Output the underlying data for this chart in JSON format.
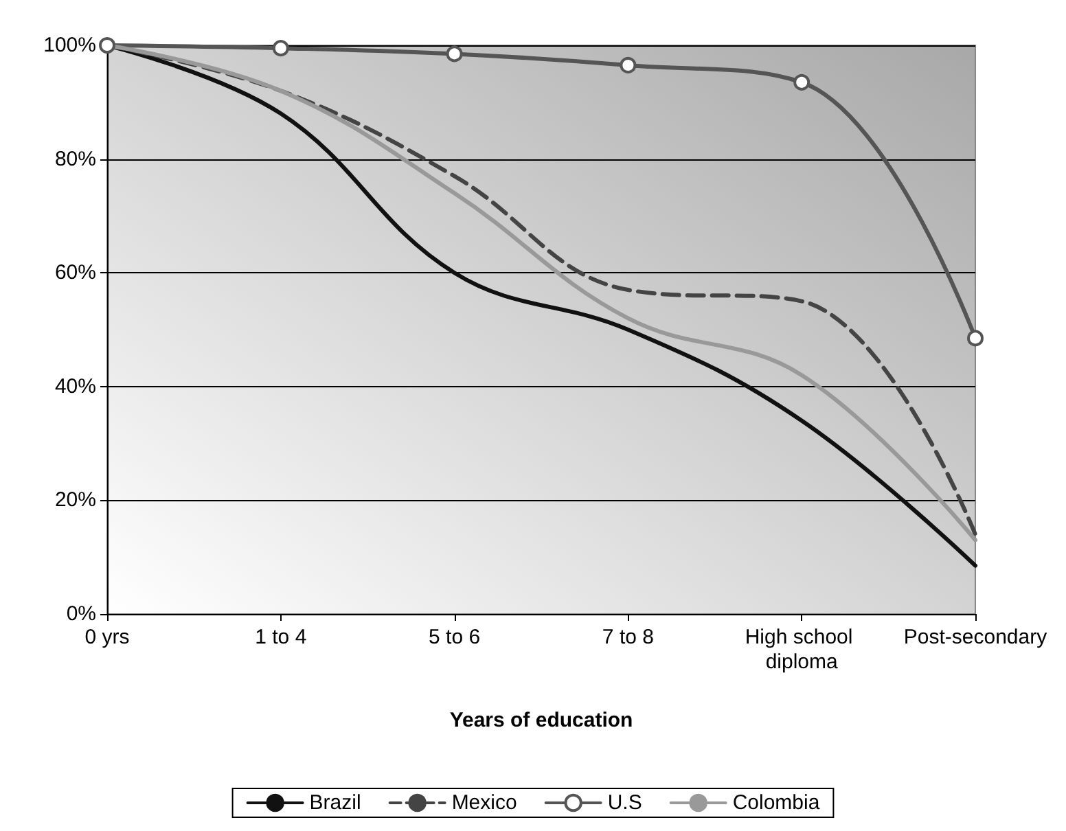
{
  "chart_data": {
    "type": "line",
    "xlabel": "Years of education",
    "categories": [
      "0 yrs",
      "1 to 4",
      "5 to 6",
      "7 to 8",
      "High school diploma",
      "Post-secondary"
    ],
    "series": [
      {
        "name": "Brazil",
        "color": "#111111",
        "line_style": "solid",
        "marker": "none",
        "values": [
          100,
          88,
          60,
          50,
          34,
          8.5
        ]
      },
      {
        "name": "Mexico",
        "color": "#444444",
        "line_style": "dashed",
        "marker": "none",
        "values": [
          100,
          92,
          77,
          57,
          55,
          14
        ]
      },
      {
        "name": "U.S",
        "color": "#555555",
        "line_style": "solid",
        "marker": "circle",
        "values": [
          100,
          99.5,
          98.5,
          96.5,
          93.5,
          48.5
        ]
      },
      {
        "name": "Colombia",
        "color": "#999999",
        "line_style": "solid",
        "marker": "none",
        "values": [
          100,
          92,
          74,
          52,
          42,
          13
        ]
      }
    ],
    "ylim": [
      0,
      100
    ],
    "yticks": [
      {
        "value": 0,
        "label": "0%"
      },
      {
        "value": 20,
        "label": "20%"
      },
      {
        "value": 40,
        "label": "40%"
      },
      {
        "value": 60,
        "label": "60%"
      },
      {
        "value": 80,
        "label": "80%"
      },
      {
        "value": 100,
        "label": "100%"
      }
    ],
    "grid": "y",
    "legend": "bottom"
  }
}
